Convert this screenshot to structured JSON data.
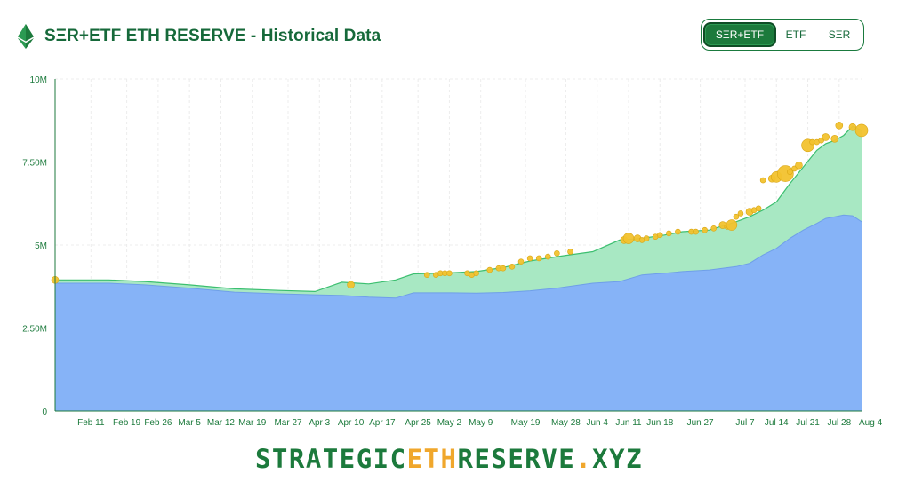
{
  "header": {
    "title": "SΞR+ETF ETH RESERVE - Historical Data",
    "logo_icon": "ethereum-icon"
  },
  "toggle": {
    "options": [
      "SΞR+ETF",
      "ETF",
      "SΞR"
    ],
    "selected": "SΞR+ETF"
  },
  "watermark": "STRATEGICETHRESERVE.XYZ",
  "footer": {
    "part1": "STRATEGIC",
    "part2": "ETH",
    "part3": "RESERVE",
    "part4": ".",
    "part5": "XYZ"
  },
  "colors": {
    "etf_fill": "#86b3f7",
    "ser_fill": "#a8e8c3",
    "ser_line": "#3cbf70",
    "dot": "#f2c22e",
    "dot_stroke": "#d9a614",
    "brand": "#1c7a3c",
    "accent": "#f0a72c"
  },
  "chart_data": {
    "type": "area",
    "ylim": [
      0,
      10000000
    ],
    "ytick_values": [
      0,
      2500000,
      5000000,
      7500000,
      10000000
    ],
    "ytick_labels": [
      "0",
      "2.50M",
      "5M",
      "7.50M",
      "10M"
    ],
    "xtick_labels": [
      "Feb 11",
      "Feb 19",
      "Feb 26",
      "Mar 5",
      "Mar 12",
      "Mar 19",
      "Mar 27",
      "Apr 3",
      "Apr 10",
      "Apr 17",
      "Apr 25",
      "May 2",
      "May 9",
      "May 19",
      "May 28",
      "Jun 4",
      "Jun 11",
      "Jun 18",
      "Jun 27",
      "Jul 7",
      "Jul 14",
      "Jul 21",
      "Jul 28",
      "Aug 4"
    ],
    "x_range": [
      0,
      180
    ],
    "xtick_x": [
      8,
      16,
      23,
      30,
      37,
      44,
      52,
      59,
      66,
      73,
      81,
      88,
      95,
      105,
      114,
      121,
      128,
      135,
      144,
      154,
      161,
      168,
      175,
      182
    ],
    "grid": true,
    "stacked": true,
    "series": [
      {
        "name": "ETF",
        "x": [
          0,
          5,
          12,
          20,
          30,
          40,
          50,
          58,
          64,
          70,
          76,
          80,
          88,
          94,
          100,
          106,
          112,
          120,
          126,
          131,
          136,
          140,
          146,
          152,
          155,
          158,
          161,
          164,
          167,
          170,
          172,
          174,
          176,
          178,
          180
        ],
        "values": [
          3850000,
          3850000,
          3850000,
          3800000,
          3700000,
          3580000,
          3530000,
          3500000,
          3480000,
          3430000,
          3400000,
          3560000,
          3560000,
          3550000,
          3570000,
          3620000,
          3700000,
          3850000,
          3900000,
          4100000,
          4150000,
          4200000,
          4250000,
          4350000,
          4450000,
          4700000,
          4900000,
          5200000,
          5450000,
          5650000,
          5800000,
          5850000,
          5900000,
          5880000,
          5700000
        ]
      },
      {
        "name": "SΞR",
        "x": [
          0,
          5,
          12,
          20,
          30,
          40,
          50,
          58,
          64,
          70,
          76,
          80,
          88,
          94,
          100,
          106,
          112,
          120,
          126,
          131,
          136,
          140,
          146,
          152,
          155,
          158,
          161,
          164,
          167,
          170,
          172,
          174,
          176,
          178,
          180
        ],
        "values": [
          100000,
          100000,
          100000,
          100000,
          100000,
          100000,
          100000,
          100000,
          400000,
          400000,
          550000,
          570000,
          600000,
          650000,
          750000,
          900000,
          950000,
          950000,
          1250000,
          1100000,
          1150000,
          1200000,
          1200000,
          1350000,
          1400000,
          1350000,
          1400000,
          1650000,
          1900000,
          2200000,
          2250000,
          2300000,
          2400000,
          2700000,
          2750000
        ]
      }
    ],
    "markers": {
      "x": [
        0,
        66,
        83,
        85,
        86,
        87,
        88,
        92,
        93,
        94,
        97,
        99,
        100,
        102,
        104,
        106,
        108,
        110,
        112,
        115,
        127,
        128,
        130,
        131,
        132,
        134,
        135,
        137,
        139,
        142,
        143,
        145,
        147,
        149,
        150,
        151,
        152,
        153,
        155,
        156,
        157,
        158,
        160,
        161,
        163,
        164,
        165,
        166,
        168,
        169,
        170,
        171,
        172,
        174,
        175,
        178,
        180
      ],
      "values": [
        3950000,
        3800000,
        4100000,
        4100000,
        4150000,
        4150000,
        4150000,
        4150000,
        4100000,
        4150000,
        4250000,
        4300000,
        4300000,
        4350000,
        4500000,
        4600000,
        4600000,
        4650000,
        4750000,
        4800000,
        5150000,
        5200000,
        5200000,
        5150000,
        5200000,
        5250000,
        5300000,
        5350000,
        5400000,
        5400000,
        5400000,
        5450000,
        5500000,
        5600000,
        5550000,
        5600000,
        5850000,
        5950000,
        6000000,
        6050000,
        6100000,
        6950000,
        7000000,
        7050000,
        7150000,
        7200000,
        7300000,
        7400000,
        8000000,
        8100000,
        8100000,
        8150000,
        8250000,
        8200000,
        8600000,
        8550000,
        8450000
      ],
      "sizes": [
        4,
        4,
        3,
        3,
        3,
        3,
        3,
        3,
        3,
        3,
        3,
        3,
        3,
        3,
        3,
        3,
        3,
        3,
        3,
        3,
        4,
        6,
        4,
        3,
        3,
        3,
        3,
        3,
        3,
        3,
        3,
        3,
        3,
        4,
        3,
        6,
        3,
        3,
        4,
        3,
        3,
        3,
        4,
        6,
        9,
        3,
        3,
        4,
        7,
        3,
        3,
        3,
        4,
        4,
        4,
        4,
        7
      ]
    }
  }
}
